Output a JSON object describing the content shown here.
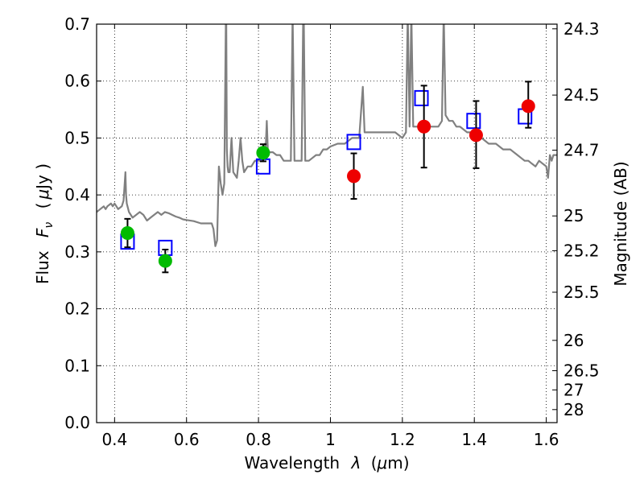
{
  "chart_data": {
    "type": "scatter",
    "xlabel": "Wavelength",
    "xlabel_symbol": "λ",
    "xlabel_unit_open": "(",
    "xlabel_unit_mu": "μ",
    "xlabel_unit_rest": "m)",
    "ylabel": "Flux",
    "ylabel_symbol": "F",
    "ylabel_symbol_sub": "ν",
    "ylabel_unit_open": "(",
    "ylabel_unit_mu": "μ",
    "ylabel_unit_rest": "Jy )",
    "y2label": "Magnitude (AB)",
    "xlim": [
      0.35,
      1.63
    ],
    "ylim": [
      0.0,
      0.7
    ],
    "grid": true,
    "x_ticks": [
      0.4,
      0.6,
      0.8,
      1.0,
      1.2,
      1.4,
      1.6
    ],
    "x_tick_labels": [
      "0.4",
      "0.6",
      "0.8",
      "1",
      "1.2",
      "1.4",
      "1.6"
    ],
    "y_ticks": [
      0.0,
      0.1,
      0.2,
      0.3,
      0.4,
      0.5,
      0.6,
      0.7
    ],
    "y_tick_labels": [
      "0.0",
      "0.1",
      "0.2",
      "0.3",
      "0.4",
      "0.5",
      "0.6",
      "0.7"
    ],
    "y2_ticks": [
      {
        "label": "24.3",
        "flux": 0.6918
      },
      {
        "label": "24.5",
        "flux": 0.5754
      },
      {
        "label": "24.7",
        "flux": 0.4786
      },
      {
        "label": "25",
        "flux": 0.3631
      },
      {
        "label": "25.2",
        "flux": 0.302
      },
      {
        "label": "25.5",
        "flux": 0.2291
      },
      {
        "label": "26",
        "flux": 0.1445
      },
      {
        "label": "26.5",
        "flux": 0.0912
      },
      {
        "label": "27",
        "flux": 0.0575
      },
      {
        "label": "28",
        "flux": 0.0229
      }
    ],
    "series": [
      {
        "kind": "line",
        "color": "#808080",
        "x": [
          0.35,
          0.36,
          0.37,
          0.375,
          0.38,
          0.39,
          0.395,
          0.4,
          0.405,
          0.41,
          0.42,
          0.425,
          0.43,
          0.432,
          0.434,
          0.436,
          0.44,
          0.45,
          0.46,
          0.47,
          0.48,
          0.49,
          0.5,
          0.51,
          0.52,
          0.53,
          0.54,
          0.55,
          0.56,
          0.57,
          0.58,
          0.59,
          0.6,
          0.62,
          0.64,
          0.66,
          0.67,
          0.675,
          0.68,
          0.685,
          0.69,
          0.695,
          0.7,
          0.705,
          0.71,
          0.712,
          0.714,
          0.716,
          0.72,
          0.725,
          0.73,
          0.74,
          0.745,
          0.75,
          0.755,
          0.76,
          0.77,
          0.78,
          0.79,
          0.8,
          0.81,
          0.815,
          0.818,
          0.82,
          0.823,
          0.826,
          0.83,
          0.84,
          0.85,
          0.86,
          0.87,
          0.88,
          0.89,
          0.895,
          0.9,
          0.905,
          0.91,
          0.92,
          0.925,
          0.93,
          0.935,
          0.94,
          0.95,
          0.96,
          0.97,
          0.98,
          0.99,
          1.0,
          1.02,
          1.04,
          1.06,
          1.08,
          1.09,
          1.095,
          1.1,
          1.11,
          1.12,
          1.14,
          1.16,
          1.18,
          1.2,
          1.21,
          1.215,
          1.22,
          1.225,
          1.23,
          1.24,
          1.25,
          1.26,
          1.27,
          1.28,
          1.29,
          1.3,
          1.31,
          1.315,
          1.32,
          1.33,
          1.34,
          1.35,
          1.36,
          1.38,
          1.4,
          1.42,
          1.44,
          1.46,
          1.48,
          1.5,
          1.52,
          1.53,
          1.54,
          1.55,
          1.56,
          1.57,
          1.58,
          1.59,
          1.6,
          1.605,
          1.61,
          1.615,
          1.62,
          1.63
        ],
        "y": [
          0.37,
          0.375,
          0.38,
          0.375,
          0.38,
          0.385,
          0.38,
          0.385,
          0.38,
          0.375,
          0.38,
          0.39,
          0.44,
          0.4,
          0.385,
          0.38,
          0.37,
          0.36,
          0.365,
          0.37,
          0.365,
          0.355,
          0.36,
          0.365,
          0.37,
          0.365,
          0.37,
          0.368,
          0.365,
          0.362,
          0.36,
          0.357,
          0.356,
          0.354,
          0.35,
          0.35,
          0.35,
          0.34,
          0.31,
          0.32,
          0.45,
          0.42,
          0.4,
          0.42,
          0.76,
          0.48,
          0.45,
          0.44,
          0.44,
          0.5,
          0.44,
          0.43,
          0.46,
          0.5,
          0.46,
          0.44,
          0.45,
          0.45,
          0.46,
          0.46,
          0.46,
          0.48,
          0.49,
          0.48,
          0.53,
          0.48,
          0.475,
          0.475,
          0.47,
          0.47,
          0.46,
          0.46,
          0.46,
          0.72,
          0.46,
          0.46,
          0.46,
          0.46,
          0.76,
          0.46,
          0.46,
          0.46,
          0.465,
          0.47,
          0.47,
          0.48,
          0.48,
          0.485,
          0.49,
          0.49,
          0.5,
          0.5,
          0.59,
          0.51,
          0.51,
          0.51,
          0.51,
          0.51,
          0.51,
          0.51,
          0.5,
          0.51,
          0.72,
          0.52,
          0.72,
          0.52,
          0.52,
          0.52,
          0.52,
          0.52,
          0.52,
          0.52,
          0.52,
          0.53,
          0.72,
          0.54,
          0.53,
          0.53,
          0.52,
          0.52,
          0.51,
          0.51,
          0.5,
          0.49,
          0.49,
          0.48,
          0.48,
          0.47,
          0.465,
          0.46,
          0.46,
          0.455,
          0.45,
          0.46,
          0.455,
          0.45,
          0.43,
          0.47,
          0.46,
          0.47,
          0.47
        ]
      },
      {
        "kind": "square",
        "color": "#0000ff",
        "x": [
          0.436,
          0.541,
          0.813,
          1.065,
          1.253,
          1.398,
          1.541
        ],
        "y": [
          0.318,
          0.307,
          0.45,
          0.493,
          0.57,
          0.53,
          0.538
        ]
      },
      {
        "kind": "circle",
        "color": "#00bb00",
        "x": [
          0.436,
          0.541,
          0.813
        ],
        "y": [
          0.333,
          0.284,
          0.474
        ],
        "err_low": [
          0.025,
          0.02,
          0.015
        ],
        "err_high": [
          0.025,
          0.02,
          0.015
        ]
      },
      {
        "kind": "circle",
        "color": "#ee0000",
        "x": [
          1.065,
          1.26,
          1.405,
          1.55
        ],
        "y": [
          0.433,
          0.52,
          0.505,
          0.556
        ],
        "err_low": [
          0.04,
          0.072,
          0.058,
          0.038
        ],
        "err_high": [
          0.04,
          0.072,
          0.06,
          0.043
        ]
      }
    ]
  }
}
